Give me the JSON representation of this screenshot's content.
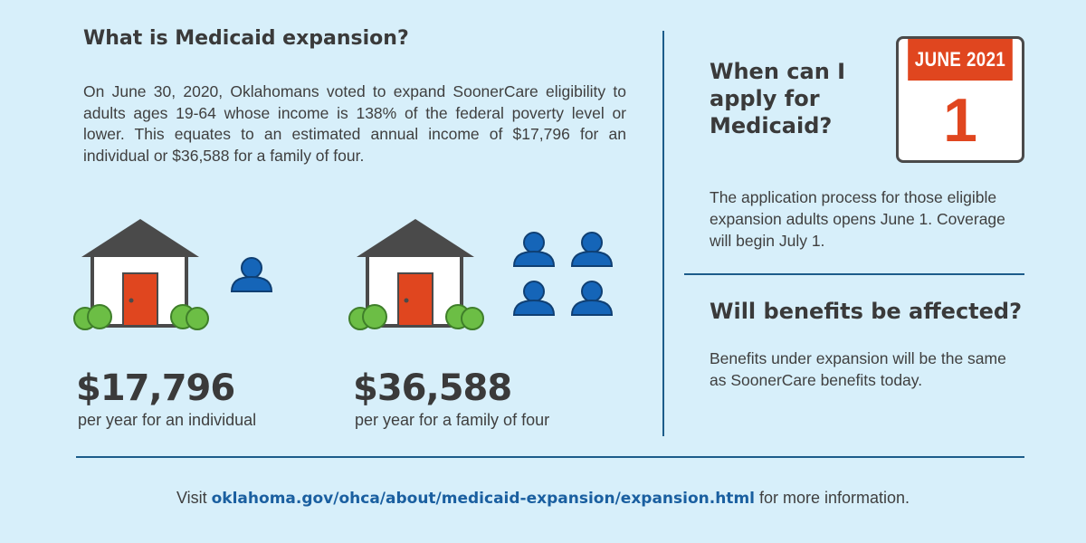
{
  "left": {
    "title": "What is Medicaid expansion?",
    "intro": "On June 30, 2020, Oklahomans voted to expand SoonerCare eligibility to adults ages 19-64 whose income is 138% of the federal poverty level or lower. This equates to an estimated annual income of $17,796 for an individual or $36,588 for a family of four.",
    "individual": {
      "amount": "$17,796",
      "label": "per year for an individual"
    },
    "family": {
      "amount": "$36,588",
      "label": "per year for a family of four"
    }
  },
  "right": {
    "apply_title_lines": [
      "When can I",
      "apply for",
      "Medicaid?"
    ],
    "calendar": {
      "month": "JUNE 2021",
      "day": "1"
    },
    "apply_text": "The application process for those eligible expansion adults opens June 1. Coverage will begin July 1.",
    "benefits_title": "Will benefits be affected?",
    "benefits_text": "Benefits under expansion will be the same as SoonerCare benefits today."
  },
  "footer": {
    "prefix": "Visit ",
    "link": "oklahoma.gov/ohca/about/medicaid-expansion/expansion.html",
    "suffix": " for more information."
  },
  "colors": {
    "background": "#d7effa",
    "person": "#1565b8",
    "door": "#e0461f",
    "roof": "#4a4a4a",
    "bush": "#6cbe45",
    "divider": "#1c5c8a",
    "link": "#1a5fa0"
  },
  "icons": [
    "house-icon",
    "person-icon",
    "calendar-icon"
  ]
}
